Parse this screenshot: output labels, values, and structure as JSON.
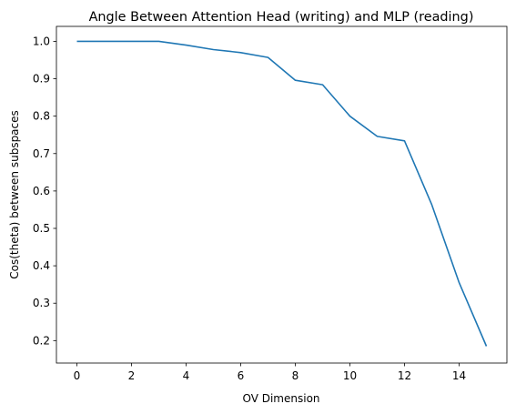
{
  "chart_data": {
    "type": "line",
    "title": "Angle Between Attention Head (writing) and MLP (reading)",
    "xlabel": "OV Dimension",
    "ylabel": "Cos(theta) between subspaces",
    "xlim": [
      -0.75,
      15.75
    ],
    "ylim": [
      0.14,
      1.04
    ],
    "xticks": [
      0,
      2,
      4,
      6,
      8,
      10,
      12,
      14
    ],
    "yticks": [
      0.2,
      0.3,
      0.4,
      0.5,
      0.6,
      0.7,
      0.8,
      0.9,
      1.0
    ],
    "ytick_labels": [
      "0.2",
      "0.3",
      "0.4",
      "0.5",
      "0.6",
      "0.7",
      "0.8",
      "0.9",
      "1.0"
    ],
    "grid": false,
    "series": [
      {
        "color": "#1f77b4",
        "x": [
          0,
          1,
          2,
          3,
          4,
          5,
          6,
          7,
          8,
          9,
          10,
          11,
          12,
          13,
          14,
          15
        ],
        "values": [
          1.0,
          1.0,
          1.0,
          1.0,
          0.99,
          0.978,
          0.97,
          0.957,
          0.896,
          0.884,
          0.8,
          0.746,
          0.734,
          0.563,
          0.355,
          0.185
        ]
      }
    ]
  }
}
